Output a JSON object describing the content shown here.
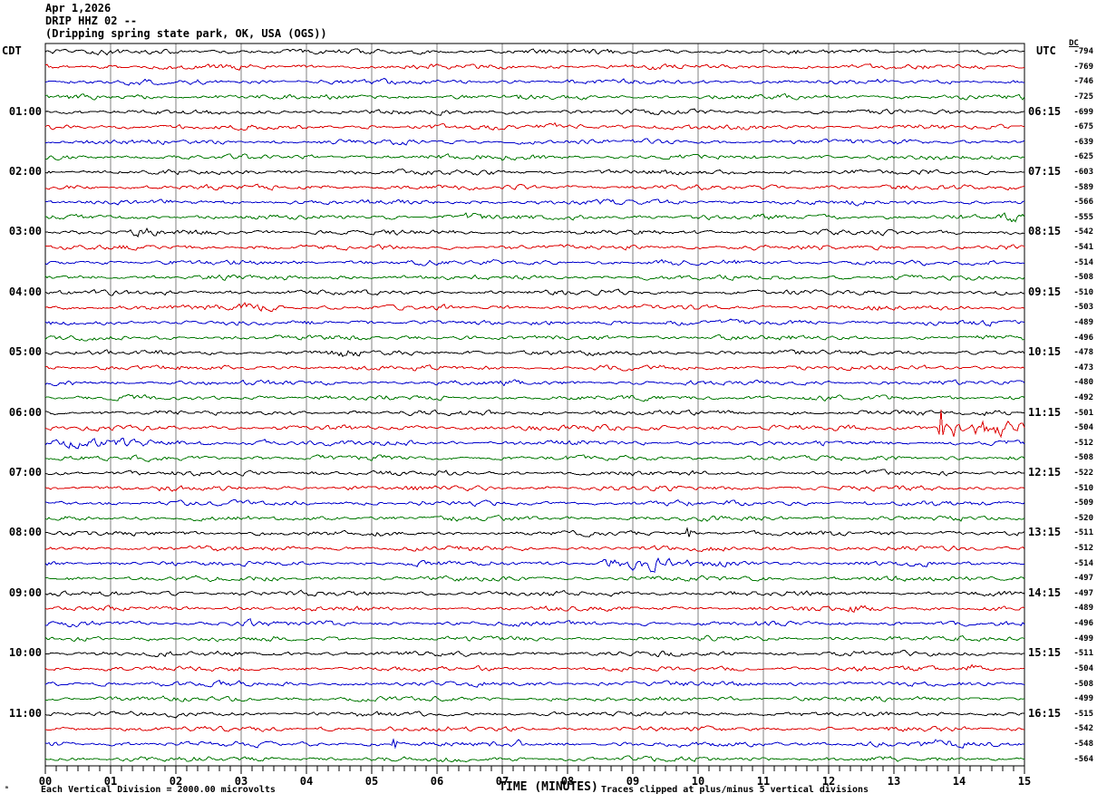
{
  "chart_data": {
    "type": "line",
    "subtype": "helicorder-seismogram",
    "date": "Apr 1,2026",
    "station_id": "DRIP HHZ 02 --",
    "location": "(Dripping spring state park, OK, USA (OGS))",
    "left_timezone_header": "CDT",
    "right_timezone_header": "UTC",
    "dc_header": "DC",
    "x_axis": {
      "label": "TIME (MINUTES)",
      "range": [
        0,
        15
      ],
      "major_tick_minutes": 1,
      "minor_ticks_per_major": 6,
      "tick_labels": [
        "00",
        "01",
        "02",
        "03",
        "04",
        "05",
        "06",
        "07",
        "08",
        "09",
        "10",
        "11",
        "12",
        "13",
        "14",
        "15"
      ]
    },
    "footer_left": "Each Vertical Division = 2000.00 microvolts",
    "footer_right": "Traces clipped at plus/minus 5 vertical divisions",
    "corner_mark": "ₘ",
    "minutes_per_row": 15,
    "grid": true,
    "colors": {
      "black": "#000000",
      "red": "#dd0000",
      "blue": "#0000cc",
      "green": "#007700",
      "grid": "#808080"
    },
    "hour_marks": [
      {
        "row_index": 4,
        "cdt": "01:00",
        "utc": "06:15"
      },
      {
        "row_index": 8,
        "cdt": "02:00",
        "utc": "07:15"
      },
      {
        "row_index": 12,
        "cdt": "03:00",
        "utc": "08:15"
      },
      {
        "row_index": 16,
        "cdt": "04:00",
        "utc": "09:15"
      },
      {
        "row_index": 20,
        "cdt": "05:00",
        "utc": "10:15"
      },
      {
        "row_index": 24,
        "cdt": "06:00",
        "utc": "11:15"
      },
      {
        "row_index": 28,
        "cdt": "07:00",
        "utc": "12:15"
      },
      {
        "row_index": 32,
        "cdt": "08:00",
        "utc": "13:15"
      },
      {
        "row_index": 36,
        "cdt": "09:00",
        "utc": "14:15"
      },
      {
        "row_index": 40,
        "cdt": "10:00",
        "utc": "15:15"
      },
      {
        "row_index": 44,
        "cdt": "11:00",
        "utc": "16:15"
      }
    ],
    "rows": [
      {
        "color": "black",
        "dc": "-794",
        "events": []
      },
      {
        "color": "red",
        "dc": "-769",
        "events": [
          {
            "m": 9.3,
            "d": 0.8,
            "a": 1.6
          }
        ]
      },
      {
        "color": "blue",
        "dc": "-746",
        "events": []
      },
      {
        "color": "green",
        "dc": "-725",
        "events": []
      },
      {
        "color": "black",
        "dc": "-699",
        "events": []
      },
      {
        "color": "red",
        "dc": "-675",
        "events": [
          {
            "m": 8.0,
            "d": 0.7,
            "a": 2.2
          }
        ]
      },
      {
        "color": "blue",
        "dc": "-639",
        "events": []
      },
      {
        "color": "green",
        "dc": "-625",
        "events": [
          {
            "m": 7.3,
            "d": 1.2,
            "a": 1.6
          }
        ]
      },
      {
        "color": "black",
        "dc": "-603",
        "events": [
          {
            "m": 6.6,
            "d": 0.6,
            "a": 1.7
          }
        ]
      },
      {
        "color": "red",
        "dc": "-589",
        "events": []
      },
      {
        "color": "blue",
        "dc": "-566",
        "events": []
      },
      {
        "color": "green",
        "dc": "-555",
        "events": [
          {
            "m": 6.5,
            "d": 0.5,
            "a": 2.2
          },
          {
            "m": 14.8,
            "d": 0.4,
            "a": 2.0
          }
        ]
      },
      {
        "color": "black",
        "dc": "-542",
        "events": [
          {
            "m": 1.5,
            "d": 0.3,
            "a": 2.2
          }
        ]
      },
      {
        "color": "red",
        "dc": "-541",
        "events": []
      },
      {
        "color": "blue",
        "dc": "-514",
        "events": []
      },
      {
        "color": "green",
        "dc": "-508",
        "events": []
      },
      {
        "color": "black",
        "dc": "-510",
        "events": []
      },
      {
        "color": "red",
        "dc": "-503",
        "events": [
          {
            "m": 3.1,
            "d": 0.9,
            "a": 2.3
          }
        ]
      },
      {
        "color": "blue",
        "dc": "-489",
        "events": []
      },
      {
        "color": "green",
        "dc": "-496",
        "events": []
      },
      {
        "color": "black",
        "dc": "-478",
        "events": [
          {
            "m": 4.6,
            "d": 0.5,
            "a": 2.0
          }
        ]
      },
      {
        "color": "red",
        "dc": "-473",
        "events": []
      },
      {
        "color": "blue",
        "dc": "-480",
        "events": []
      },
      {
        "color": "green",
        "dc": "-492",
        "events": []
      },
      {
        "color": "black",
        "dc": "-501",
        "events": [
          {
            "m": 14.6,
            "d": 0.5,
            "a": 1.8
          }
        ]
      },
      {
        "color": "red",
        "dc": "-504",
        "events": [
          {
            "m": 13.72,
            "a": 20,
            "spike": true
          },
          {
            "m": 14.0,
            "d": 0.4,
            "a": 6
          },
          {
            "m": 14.6,
            "d": 1.1,
            "a": 4.5
          },
          {
            "m": 9.0,
            "d": 7.0,
            "a": 1.25
          }
        ]
      },
      {
        "color": "blue",
        "dc": "-512",
        "events": [
          {
            "m": 0.9,
            "d": 2.2,
            "a": 2.1
          },
          {
            "m": 3.4,
            "d": 0.15,
            "a": 2.5
          },
          {
            "m": 5.6,
            "d": 0.4,
            "a": 1.8
          }
        ]
      },
      {
        "color": "green",
        "dc": "-508",
        "events": []
      },
      {
        "color": "black",
        "dc": "-522",
        "events": []
      },
      {
        "color": "red",
        "dc": "-510",
        "events": []
      },
      {
        "color": "blue",
        "dc": "-509",
        "events": []
      },
      {
        "color": "green",
        "dc": "-520",
        "events": []
      },
      {
        "color": "black",
        "dc": "-511",
        "events": [
          {
            "m": 9.85,
            "a": 7,
            "spike": true
          }
        ]
      },
      {
        "color": "red",
        "dc": "-512",
        "events": []
      },
      {
        "color": "blue",
        "dc": "-514",
        "events": [
          {
            "m": 8.65,
            "d": 0.4,
            "a": 3.3
          },
          {
            "m": 9.2,
            "d": 0.55,
            "a": 4.2
          },
          {
            "m": 10.1,
            "d": 1.2,
            "a": 1.7
          }
        ]
      },
      {
        "color": "green",
        "dc": "-497",
        "events": []
      },
      {
        "color": "black",
        "dc": "-497",
        "events": []
      },
      {
        "color": "red",
        "dc": "-489",
        "events": [
          {
            "m": 12.4,
            "d": 0.25,
            "a": 2.2
          }
        ]
      },
      {
        "color": "blue",
        "dc": "-496",
        "events": [
          {
            "m": 3.1,
            "d": 0.35,
            "a": 2.3
          }
        ]
      },
      {
        "color": "green",
        "dc": "-499",
        "events": []
      },
      {
        "color": "black",
        "dc": "-511",
        "events": []
      },
      {
        "color": "red",
        "dc": "-504",
        "events": [
          {
            "m": 14.2,
            "d": 0.4,
            "a": 2.4
          }
        ]
      },
      {
        "color": "blue",
        "dc": "-508",
        "events": []
      },
      {
        "color": "green",
        "dc": "-499",
        "events": []
      },
      {
        "color": "black",
        "dc": "-515",
        "events": []
      },
      {
        "color": "red",
        "dc": "-542",
        "events": []
      },
      {
        "color": "blue",
        "dc": "-548",
        "events": [
          {
            "m": 5.35,
            "a": 6,
            "spike": true
          },
          {
            "m": 7.25,
            "d": 0.15,
            "a": 2.0
          },
          {
            "m": 13.8,
            "d": 1.2,
            "a": 1.7
          }
        ]
      },
      {
        "color": "green",
        "dc": "-564",
        "events": []
      }
    ]
  }
}
